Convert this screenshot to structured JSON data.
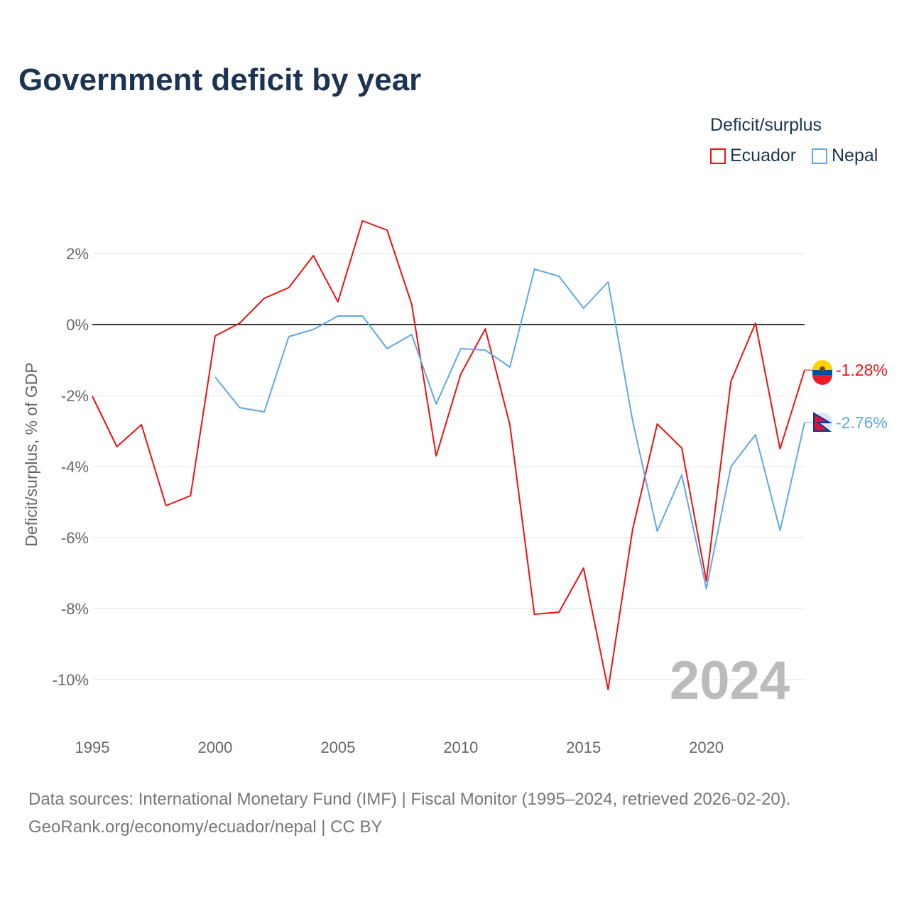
{
  "title": "Government deficit by year",
  "legend": {
    "title": "Deficit/surplus",
    "items": [
      {
        "label": "Ecuador",
        "color": "#ee1111"
      },
      {
        "label": "Nepal",
        "color": "#5fa8e8"
      }
    ]
  },
  "source": {
    "line1": "Data sources: International Monetary Fund (IMF) | Fiscal Monitor (1995–2024, retrieved 2026-02-20).",
    "line2": "GeoRank.org/economy/ecuador/nepal | CC BY"
  },
  "chart_data": {
    "type": "line",
    "title": "Government deficit by year",
    "xlabel": "",
    "ylabel": "Deficit/surplus, % of GDP",
    "xlim": [
      1995,
      2024
    ],
    "ylim": [
      -10.5,
      3
    ],
    "x_ticks": [
      "1995",
      "2000",
      "2005",
      "2010",
      "2015",
      "2020"
    ],
    "y_ticks": [
      "2%",
      "0%",
      "-2%",
      "-4%",
      "-6%",
      "-8%",
      "-10%"
    ],
    "y_tick_values": [
      2,
      0,
      -2,
      -4,
      -6,
      -8,
      -10
    ],
    "grid": true,
    "year_label": "2024",
    "series": [
      {
        "name": "Ecuador",
        "color": "#ee1111",
        "end_label": "-1.28%",
        "x": [
          1995,
          1996,
          1997,
          1998,
          1999,
          2000,
          2001,
          2002,
          2003,
          2004,
          2005,
          2006,
          2007,
          2008,
          2009,
          2010,
          2011,
          2012,
          2013,
          2014,
          2015,
          2016,
          2017,
          2018,
          2019,
          2020,
          2021,
          2022,
          2023,
          2024
        ],
        "values": [
          -2.02,
          -3.44,
          -2.82,
          -5.1,
          -4.82,
          -0.32,
          0.04,
          0.74,
          1.04,
          1.94,
          0.64,
          2.92,
          2.66,
          0.58,
          -3.7,
          -1.4,
          -0.12,
          -2.82,
          -8.16,
          -8.1,
          -6.86,
          -10.28,
          -5.76,
          -2.8,
          -3.48,
          -7.22,
          -1.6,
          0.04,
          -3.5,
          -1.28
        ]
      },
      {
        "name": "Nepal",
        "color": "#5fa8e8",
        "end_label": "-2.76%",
        "x": [
          2000,
          2001,
          2002,
          2003,
          2004,
          2005,
          2006,
          2007,
          2008,
          2009,
          2010,
          2011,
          2012,
          2013,
          2014,
          2015,
          2016,
          2017,
          2018,
          2019,
          2020,
          2021,
          2022,
          2023,
          2024
        ],
        "values": [
          -1.48,
          -2.34,
          -2.46,
          -0.34,
          -0.14,
          0.24,
          0.24,
          -0.68,
          -0.28,
          -2.24,
          -0.68,
          -0.72,
          -1.2,
          1.56,
          1.36,
          0.46,
          1.2,
          -2.72,
          -5.82,
          -4.24,
          -7.44,
          -4.0,
          -3.1,
          -5.8,
          -2.76
        ]
      }
    ]
  }
}
